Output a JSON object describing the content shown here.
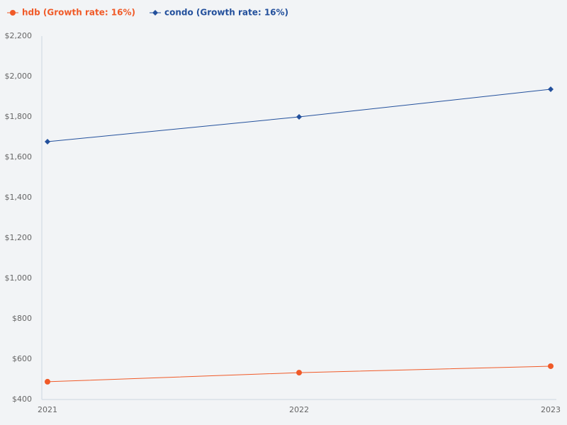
{
  "chart_data": {
    "type": "line",
    "categories": [
      "2021",
      "2022",
      "2023"
    ],
    "series": [
      {
        "name": "hdb (Growth rate: 16%)",
        "color": "#f05a28",
        "marker": "circle",
        "values": [
          488,
          533,
          565
        ]
      },
      {
        "name": "condo (Growth rate: 16%)",
        "color": "#23509c",
        "marker": "diamond",
        "values": [
          1677,
          1800,
          1937
        ]
      }
    ],
    "ylim": [
      400,
      2200
    ],
    "yticks": [
      {
        "value": 400,
        "label": "$400"
      },
      {
        "value": 600,
        "label": "$600"
      },
      {
        "value": 800,
        "label": "$800"
      },
      {
        "value": 1000,
        "label": "$1,000"
      },
      {
        "value": 1200,
        "label": "$1,200"
      },
      {
        "value": 1400,
        "label": "$1,400"
      },
      {
        "value": 1600,
        "label": "$1,600"
      },
      {
        "value": 1800,
        "label": "$1,800"
      },
      {
        "value": 2000,
        "label": "$2,000"
      },
      {
        "value": 2200,
        "label": "$2,200"
      }
    ],
    "grid": false,
    "legend": "top-left"
  }
}
